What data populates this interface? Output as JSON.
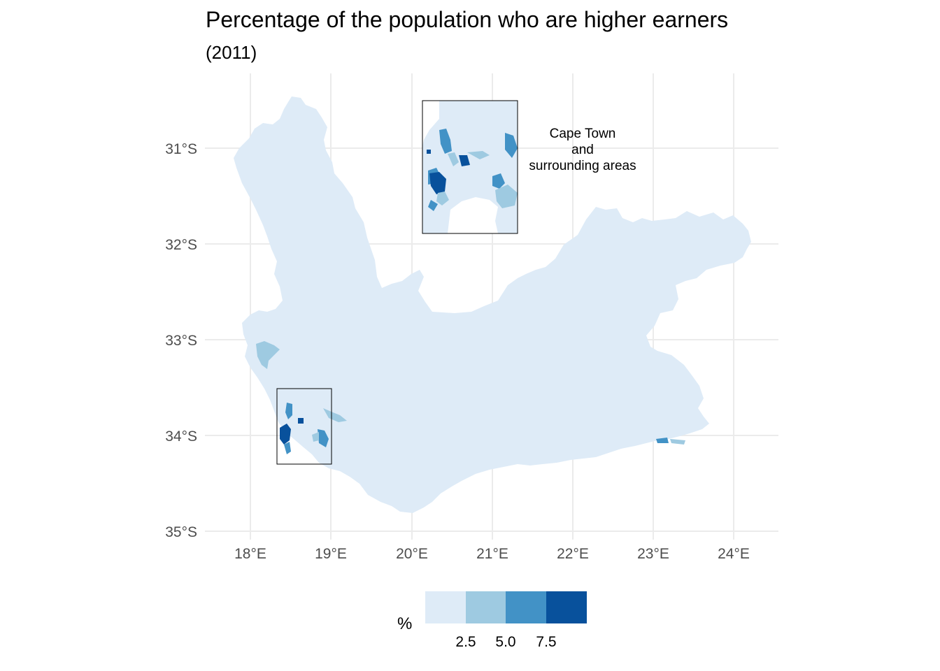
{
  "title": "Percentage of the population who are higher earners",
  "subtitle": "(2011)",
  "axes": {
    "x_ticks": [
      "18°E",
      "19°E",
      "20°E",
      "21°E",
      "22°E",
      "23°E",
      "24°E"
    ],
    "y_ticks": [
      "31°S",
      "32°S",
      "33°S",
      "34°S",
      "35°S"
    ]
  },
  "annotation": {
    "lines": [
      "Cape Town",
      "and",
      "surrounding areas"
    ]
  },
  "legend": {
    "title": "%",
    "tick_labels": [
      "2.5",
      "5.0",
      "7.5"
    ],
    "colors": [
      "#deebf7",
      "#9ecae1",
      "#4292c6",
      "#08519c"
    ]
  },
  "colors": {
    "low": "#deebf7",
    "mid_low": "#9ecae1",
    "mid_high": "#4292c6",
    "high": "#08519c",
    "grid": "#ebebeb"
  }
}
